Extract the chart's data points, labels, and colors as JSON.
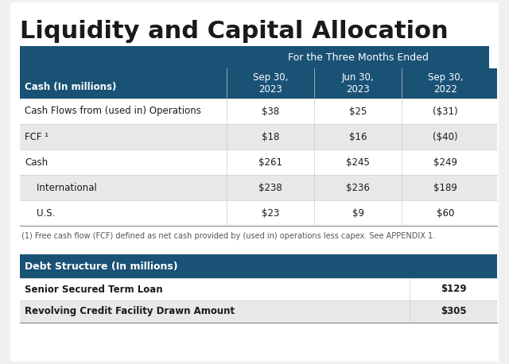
{
  "title": "Liquidity and Capital Allocation",
  "title_fontsize": 22,
  "title_fontweight": "bold",
  "background_color": "#f0f0f0",
  "panel_bg": "#ffffff",
  "header_bg": "#1a5276",
  "header_text_color": "#ffffff",
  "subheader_bg": "#1a5276",
  "subheader_text_color": "#ffffff",
  "row_colors": [
    "#ffffff",
    "#e8e8e8",
    "#ffffff",
    "#e8e8e8",
    "#ffffff"
  ],
  "cash_table_header_span": "For the Three Months Ended",
  "cash_col_header": "Cash (In millions)",
  "cash_columns": [
    "Sep 30,\n2023",
    "Jun 30,\n2023",
    "Sep 30,\n2022"
  ],
  "cash_rows": [
    [
      "Cash Flows from (used in) Operations",
      "$38",
      "$25",
      "($31)"
    ],
    [
      "FCF ¹",
      "$18",
      "$16",
      "($40)"
    ],
    [
      "Cash",
      "$261",
      "$245",
      "$249"
    ],
    [
      "    International",
      "$238",
      "$236",
      "$189"
    ],
    [
      "    U.S.",
      "$23",
      "$9",
      "$60"
    ]
  ],
  "footnote": "(1) Free cash flow (FCF) defined as net cash provided by (used in) operations less capex. See APPENDIX 1.",
  "debt_header": "Debt Structure (In millions)",
  "debt_header_bg": "#1a5276",
  "debt_header_text_color": "#ffffff",
  "debt_rows": [
    [
      "Senior Secured Term Loan",
      "$129"
    ],
    [
      "Revolving Credit Facility Drawn Amount",
      "$305"
    ]
  ],
  "debt_row_colors": [
    "#ffffff",
    "#e8e8e8"
  ]
}
